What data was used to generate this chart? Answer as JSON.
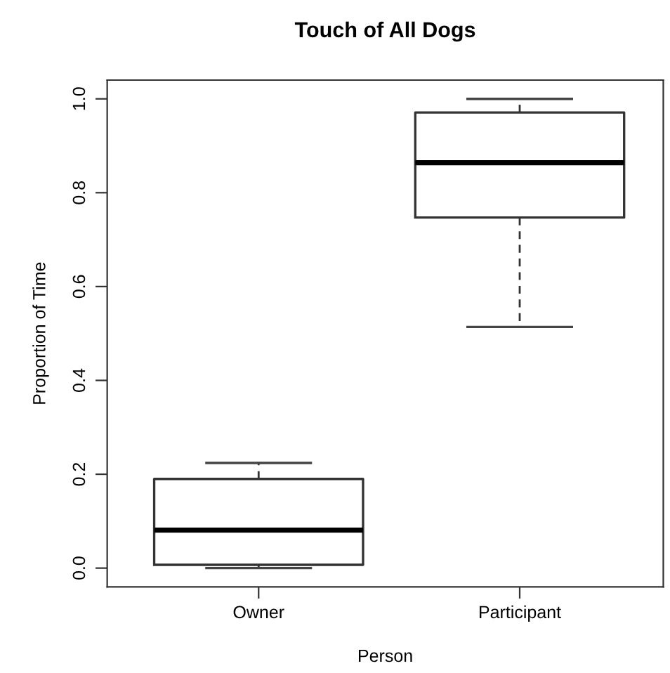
{
  "chart_data": {
    "type": "box",
    "title": "Touch of All Dogs",
    "xlabel": "Person",
    "ylabel": "Proportion of Time",
    "categories": [
      "Owner",
      "Participant"
    ],
    "boxes": [
      {
        "low": 0.0,
        "q1": 0.007,
        "median": 0.081,
        "q3": 0.19,
        "high": 0.224
      },
      {
        "low": 0.514,
        "q1": 0.747,
        "median": 0.864,
        "q3": 0.971,
        "high": 1.0
      }
    ],
    "ylim": [
      -0.04,
      1.04
    ],
    "yticks": [
      {
        "value": 0,
        "label": "0.0"
      },
      {
        "value": 0.2,
        "label": "0.2"
      },
      {
        "value": 0.4,
        "label": "0.4"
      },
      {
        "value": 0.6,
        "label": "0.6"
      },
      {
        "value": 0.8,
        "label": "0.8"
      },
      {
        "value": 1,
        "label": "1.0"
      }
    ],
    "grid": false
  }
}
